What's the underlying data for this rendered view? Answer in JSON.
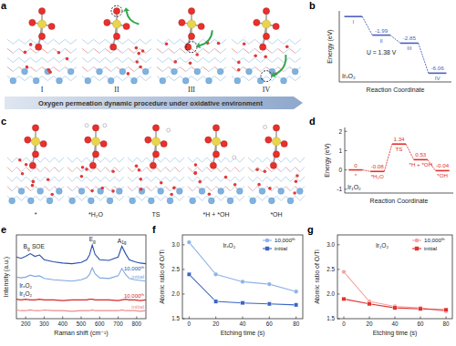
{
  "figure": {
    "a": {
      "label": "a",
      "states": [
        "I",
        "II",
        "III",
        "IV"
      ],
      "caption": "Oxygen permeation dynamic procedure under oxidative environment"
    },
    "c": {
      "label": "c",
      "states": [
        "*",
        "*H₂O",
        "TS",
        "*H + *OH",
        "*OH"
      ]
    }
  },
  "chart_data": [
    {
      "type": "step",
      "title": "b",
      "x_label": "Reaction Coordinate",
      "y_label": "Energy (eV)",
      "categories": [
        "I",
        "II",
        "III",
        "IV"
      ],
      "values": [
        0,
        -1.99,
        -2.85,
        -6.06
      ],
      "value_labels": [
        null,
        "-1.99",
        "-2.85",
        "-6.06"
      ],
      "data_labels": true,
      "color": "#4b5fc0",
      "ylim": [
        -7,
        0.6
      ],
      "tick_labels": "x",
      "annotations": [
        {
          "text": "IrₓO₂"
        },
        {
          "text": "U = 1.38 V"
        }
      ]
    },
    {
      "type": "step",
      "title": "d",
      "x_label": "Reaction Coordinate",
      "y_label": "Energy (eV)",
      "categories": [
        "*",
        "*H₂O",
        "TS",
        "*H + *OH",
        "*OH"
      ],
      "values": [
        0,
        -0.08,
        1.34,
        0.53,
        -0.04
      ],
      "data_labels": true,
      "color": "#e0322e",
      "ylim": [
        -1.2,
        2.2
      ],
      "yticks": [
        -1,
        0,
        1,
        2
      ],
      "annotations": [
        {
          "text": "Ir₁O₂"
        }
      ]
    },
    {
      "type": "line",
      "title": "e",
      "x_label": "Raman shift (cm⁻¹)",
      "y_label": "Intensity (a.u.)",
      "x": [
        150,
        175,
        200,
        225,
        250,
        275,
        300,
        350,
        400,
        450,
        500,
        530,
        545,
        560,
        575,
        600,
        650,
        700,
        720,
        740,
        760,
        790,
        820,
        850
      ],
      "xlim": [
        150,
        850
      ],
      "xticks": [
        200,
        300,
        400,
        500,
        600,
        700,
        800
      ],
      "ylim": [
        0,
        1.25
      ],
      "tick_labels": "x",
      "legend": "inline",
      "series": [
        {
          "name": "10,000ᵗʰ",
          "color": "#2a4fa8",
          "values": [
            0.92,
            0.9,
            0.93,
            0.97,
            0.93,
            0.95,
            0.88,
            0.85,
            0.83,
            0.82,
            0.84,
            0.88,
            0.95,
            1.1,
            0.96,
            0.88,
            0.87,
            0.92,
            1.08,
            0.97,
            0.88,
            0.85,
            0.83,
            0.82
          ]
        },
        {
          "name": "initial",
          "color": "#7ea6e0",
          "values": [
            0.62,
            0.61,
            0.62,
            0.65,
            0.63,
            0.64,
            0.6,
            0.58,
            0.57,
            0.56,
            0.58,
            0.61,
            0.66,
            0.76,
            0.67,
            0.61,
            0.6,
            0.64,
            0.75,
            0.66,
            0.6,
            0.58,
            0.57,
            0.56
          ]
        },
        {
          "name": "10,000ᵗʰ",
          "color": "#d62828",
          "values": [
            0.29,
            0.28,
            0.29,
            0.28,
            0.28,
            0.29,
            0.28,
            0.28,
            0.27,
            0.28,
            0.28,
            0.28,
            0.29,
            0.29,
            0.28,
            0.28,
            0.28,
            0.27,
            0.28,
            0.29,
            0.28,
            0.28,
            0.27,
            0.28
          ]
        },
        {
          "name": "initial",
          "color": "#f08a8a",
          "values": [
            0.13,
            0.12,
            0.12,
            0.13,
            0.12,
            0.12,
            0.13,
            0.12,
            0.12,
            0.11,
            0.12,
            0.12,
            0.12,
            0.13,
            0.12,
            0.12,
            0.12,
            0.12,
            0.13,
            0.12,
            0.12,
            0.12,
            0.11,
            0.12
          ]
        }
      ],
      "annotations": [
        {
          "text": "IrₓO₂",
          "x": 200,
          "y": 0.46
        },
        {
          "text": "Ir₁O₂",
          "x": 200,
          "y": 0.34
        },
        {
          "text": "Bg",
          "x": 205,
          "y": 1.04
        },
        {
          "text": "SOE",
          "x": 268,
          "y": 1.04
        },
        {
          "text": "Eg",
          "x": 560,
          "y": 1.15
        },
        {
          "text": "A1g",
          "x": 720,
          "y": 1.13
        }
      ]
    },
    {
      "type": "line",
      "title": "f",
      "x_label": "Etching time (s)",
      "y_label": "Atomic ratio of O/Ti",
      "x": [
        0,
        20,
        40,
        60,
        80
      ],
      "xlim": [
        -5,
        85
      ],
      "xticks": [
        0,
        20,
        40,
        60,
        80
      ],
      "ylim": [
        1.5,
        3.2
      ],
      "yticks": [
        1.5,
        {
          "value": 2,
          "label": "2.0"
        },
        2.5,
        {
          "value": 3,
          "label": "3.0"
        }
      ],
      "legend": "upper right",
      "series": [
        {
          "name": "10,000ᵗʰ",
          "color": "#8db3ea",
          "marker": "circle",
          "values": [
            3.05,
            2.4,
            2.25,
            2.2,
            2.05
          ]
        },
        {
          "name": "initial",
          "color": "#3a64c6",
          "marker": "square",
          "values": [
            2.4,
            1.85,
            1.82,
            1.8,
            1.78
          ]
        }
      ],
      "annotations": [
        {
          "text": "IrₓO₂",
          "x": 30,
          "y": 2.95
        }
      ]
    },
    {
      "type": "line",
      "title": "g",
      "x_label": "Etching time (s)",
      "y_label": "Atomic ratio of O/Ti",
      "x": [
        0,
        20,
        40,
        60,
        80
      ],
      "xlim": [
        -5,
        85
      ],
      "xticks": [
        0,
        20,
        40,
        60,
        80
      ],
      "ylim": [
        1.5,
        3.2
      ],
      "yticks": [
        1.5,
        {
          "value": 2,
          "label": "2.0"
        },
        2.5,
        {
          "value": 3,
          "label": "3.0"
        }
      ],
      "legend": "upper right",
      "series": [
        {
          "name": "10,000ᵗʰ",
          "color": "#f4a3a3",
          "marker": "circle",
          "values": [
            2.45,
            1.85,
            1.75,
            1.72,
            1.65
          ]
        },
        {
          "name": "initial",
          "color": "#e0322e",
          "marker": "square",
          "values": [
            1.9,
            1.8,
            1.72,
            1.7,
            1.68
          ]
        }
      ],
      "annotations": [
        {
          "text": "Ir₁O₂",
          "x": 30,
          "y": 2.95
        }
      ]
    }
  ]
}
